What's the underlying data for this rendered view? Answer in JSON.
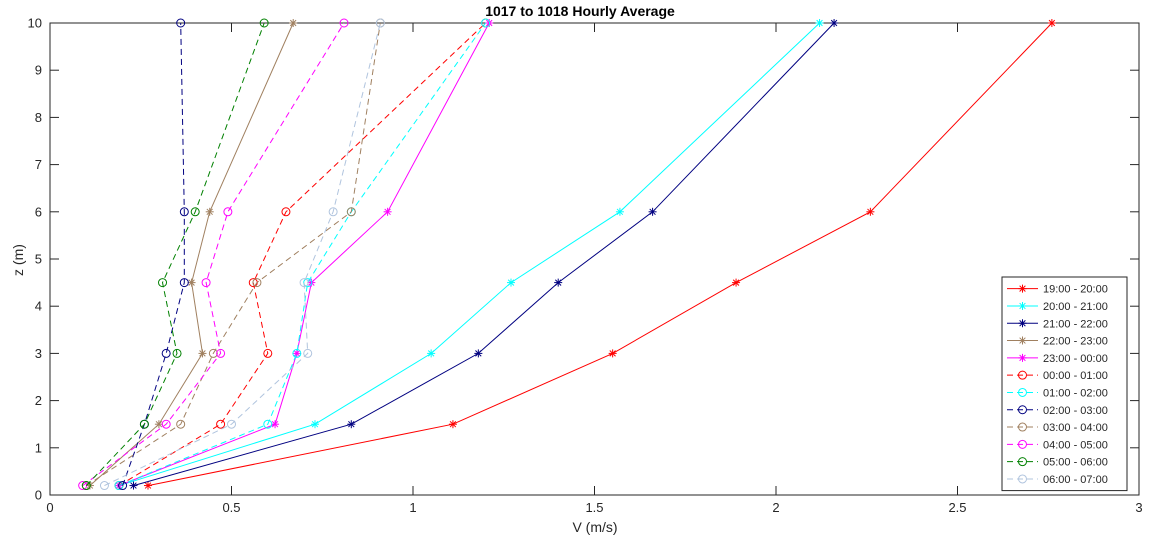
{
  "chart_data": {
    "type": "line",
    "title": "1017 to 1018 Hourly Average",
    "xlabel": "V (m/s)",
    "ylabel": "z (m)",
    "xlim": [
      0,
      3
    ],
    "ylim": [
      0,
      10
    ],
    "xticks": [
      0,
      0.5,
      1,
      1.5,
      2,
      2.5,
      3
    ],
    "xtick_labels": [
      "0",
      "0.5",
      "1",
      "1.5",
      "2",
      "2.5",
      "3"
    ],
    "yticks": [
      0,
      1,
      2,
      3,
      4,
      5,
      6,
      7,
      8,
      9,
      10
    ],
    "ytick_labels": [
      "0",
      "1",
      "2",
      "3",
      "4",
      "5",
      "6",
      "7",
      "8",
      "9",
      "10"
    ],
    "grid": false,
    "legend_position": "right",
    "heights": [
      0.2,
      1.5,
      3,
      4.5,
      6,
      10
    ],
    "series": [
      {
        "name": "19:00 - 20:00",
        "color": "#ff0000",
        "line": "solid",
        "marker": "asterisk",
        "x": [
          0.27,
          1.11,
          1.55,
          1.89,
          2.26,
          2.76
        ]
      },
      {
        "name": "20:00 - 21:00",
        "color": "#00ffff",
        "line": "solid",
        "marker": "asterisk",
        "x": [
          0.19,
          0.73,
          1.05,
          1.27,
          1.57,
          2.12
        ]
      },
      {
        "name": "21:00 - 22:00",
        "color": "#000080",
        "line": "solid",
        "marker": "asterisk",
        "x": [
          0.23,
          0.83,
          1.18,
          1.4,
          1.66,
          2.16
        ]
      },
      {
        "name": "22:00 - 23:00",
        "color": "#a08060",
        "line": "solid",
        "marker": "asterisk",
        "x": [
          0.11,
          0.3,
          0.42,
          0.39,
          0.44,
          0.67
        ]
      },
      {
        "name": "23:00 - 00:00",
        "color": "#ff00ff",
        "line": "solid",
        "marker": "asterisk",
        "x": [
          0.19,
          0.62,
          0.68,
          0.72,
          0.93,
          1.21
        ]
      },
      {
        "name": "00:00 - 01:00",
        "color": "#ff0000",
        "line": "dashed",
        "marker": "circle",
        "x": [
          0.19,
          0.47,
          0.6,
          0.56,
          0.65,
          1.2
        ]
      },
      {
        "name": "01:00 - 02:00",
        "color": "#00ffff",
        "line": "dashed",
        "marker": "circle",
        "x": [
          0.19,
          0.6,
          0.68,
          0.71,
          0.83,
          1.2
        ]
      },
      {
        "name": "02:00 - 03:00",
        "color": "#000080",
        "line": "dashed",
        "marker": "circle",
        "x": [
          0.2,
          0.26,
          0.32,
          0.37,
          0.37,
          0.36
        ]
      },
      {
        "name": "03:00 - 04:00",
        "color": "#a08060",
        "line": "dashed",
        "marker": "circle",
        "x": [
          0.1,
          0.36,
          0.45,
          0.57,
          0.83,
          0.91
        ]
      },
      {
        "name": "04:00 - 05:00",
        "color": "#ff00ff",
        "line": "dashed",
        "marker": "circle",
        "x": [
          0.09,
          0.32,
          0.47,
          0.43,
          0.49,
          0.81
        ]
      },
      {
        "name": "05:00 - 06:00",
        "color": "#008000",
        "line": "dashed",
        "marker": "circle",
        "x": [
          0.1,
          0.26,
          0.35,
          0.31,
          0.4,
          0.59
        ]
      },
      {
        "name": "06:00 - 07:00",
        "color": "#b0c4de",
        "line": "dashed",
        "marker": "circle",
        "x": [
          0.15,
          0.5,
          0.71,
          0.7,
          0.78,
          0.91
        ]
      }
    ]
  }
}
